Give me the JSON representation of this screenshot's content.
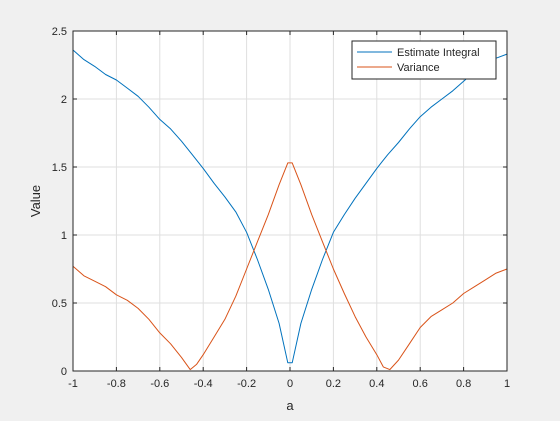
{
  "chart_data": {
    "type": "line",
    "xlabel": "a",
    "ylabel": "Value",
    "xlim": [
      -1,
      1
    ],
    "ylim": [
      0,
      2.5
    ],
    "xticks": [
      -1,
      -0.8,
      -0.6,
      -0.4,
      -0.2,
      0,
      0.2,
      0.4,
      0.6,
      0.8,
      1
    ],
    "xtick_labels": [
      "-1",
      "-0.8",
      "-0.6",
      "-0.4",
      "-0.2",
      "0",
      "0.2",
      "0.4",
      "0.6",
      "0.8",
      "1"
    ],
    "yticks": [
      0,
      0.5,
      1,
      1.5,
      2,
      2.5
    ],
    "ytick_labels": [
      "0",
      "0.5",
      "1",
      "1.5",
      "2",
      "2.5"
    ],
    "grid": true,
    "legend_position": "top-right",
    "background": "#ffffff",
    "figure_background": "#f0f0f0",
    "series": [
      {
        "name": "Estimate Integral",
        "color": "#0072bd",
        "x": [
          -1,
          -0.95,
          -0.9,
          -0.85,
          -0.8,
          -0.75,
          -0.7,
          -0.65,
          -0.6,
          -0.55,
          -0.5,
          -0.45,
          -0.4,
          -0.35,
          -0.3,
          -0.25,
          -0.2,
          -0.15,
          -0.1,
          -0.05,
          -0.01,
          0.01,
          0.05,
          0.1,
          0.15,
          0.2,
          0.25,
          0.3,
          0.35,
          0.4,
          0.45,
          0.5,
          0.55,
          0.6,
          0.65,
          0.7,
          0.75,
          0.8,
          0.85,
          0.9,
          0.95,
          1
        ],
        "y": [
          2.36,
          2.29,
          2.24,
          2.18,
          2.14,
          2.08,
          2.02,
          1.94,
          1.85,
          1.78,
          1.69,
          1.59,
          1.49,
          1.38,
          1.28,
          1.17,
          1.02,
          0.82,
          0.6,
          0.35,
          0.06,
          0.06,
          0.35,
          0.6,
          0.82,
          1.02,
          1.15,
          1.27,
          1.38,
          1.49,
          1.59,
          1.68,
          1.78,
          1.87,
          1.94,
          2.0,
          2.06,
          2.13,
          2.2,
          2.26,
          2.3,
          2.33
        ]
      },
      {
        "name": "Variance",
        "color": "#d95319",
        "x": [
          -1,
          -0.95,
          -0.9,
          -0.85,
          -0.8,
          -0.75,
          -0.7,
          -0.65,
          -0.6,
          -0.55,
          -0.5,
          -0.46,
          -0.43,
          -0.4,
          -0.35,
          -0.3,
          -0.25,
          -0.2,
          -0.15,
          -0.1,
          -0.05,
          -0.01,
          0.01,
          0.05,
          0.1,
          0.15,
          0.2,
          0.25,
          0.3,
          0.35,
          0.4,
          0.43,
          0.46,
          0.5,
          0.55,
          0.6,
          0.65,
          0.7,
          0.75,
          0.8,
          0.85,
          0.9,
          0.95,
          1
        ],
        "y": [
          0.77,
          0.7,
          0.66,
          0.62,
          0.56,
          0.52,
          0.46,
          0.38,
          0.28,
          0.2,
          0.1,
          0.01,
          0.05,
          0.12,
          0.25,
          0.38,
          0.55,
          0.75,
          0.95,
          1.15,
          1.37,
          1.53,
          1.53,
          1.37,
          1.15,
          0.95,
          0.75,
          0.57,
          0.4,
          0.25,
          0.12,
          0.03,
          0.01,
          0.08,
          0.2,
          0.32,
          0.4,
          0.45,
          0.5,
          0.57,
          0.62,
          0.67,
          0.72,
          0.75
        ]
      }
    ]
  }
}
